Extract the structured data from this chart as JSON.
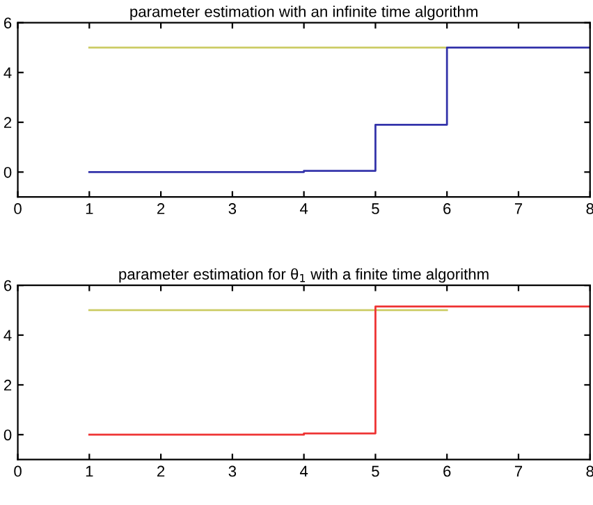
{
  "chart_data": [
    {
      "type": "step",
      "title": "parameter estimation with an infinite time algorithm",
      "xlim": [
        0,
        8
      ],
      "ylim": [
        -1,
        6
      ],
      "xticks": [
        0,
        1,
        2,
        3,
        4,
        5,
        6,
        7,
        8
      ],
      "yticks": [
        0,
        2,
        4,
        6
      ],
      "grid": false,
      "legend": false,
      "series": [
        {
          "color": "#cccc66",
          "x": [
            1,
            6
          ],
          "values": [
            5,
            5
          ]
        },
        {
          "color": "#3333aa",
          "x": [
            1,
            4,
            5,
            6,
            8
          ],
          "values": [
            0,
            0.05,
            1.9,
            5,
            5
          ]
        }
      ]
    },
    {
      "type": "step",
      "title": "parameter estimation for θ$_{1}$ with a finite time algorithm",
      "xlim": [
        0,
        8
      ],
      "ylim": [
        -1,
        6
      ],
      "xticks": [
        0,
        1,
        2,
        3,
        4,
        5,
        6,
        7,
        8
      ],
      "yticks": [
        0,
        2,
        4,
        6
      ],
      "grid": false,
      "legend": false,
      "series": [
        {
          "color": "#cccc66",
          "x": [
            1,
            6
          ],
          "values": [
            5,
            5
          ]
        },
        {
          "color": "#ee3333",
          "x": [
            1,
            4,
            5,
            8
          ],
          "values": [
            0,
            0.05,
            5.15,
            5.15
          ]
        }
      ]
    }
  ]
}
